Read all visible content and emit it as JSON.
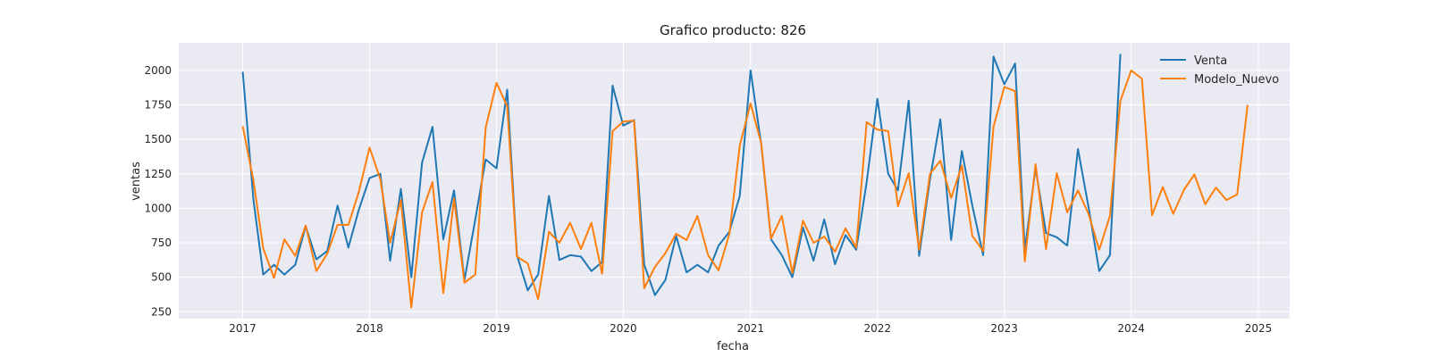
{
  "chart_data": {
    "type": "line",
    "title": "Grafico producto: 826",
    "xlabel": "fecha",
    "ylabel": "ventas",
    "xlim": [
      "2016-07-01",
      "2025-04-01"
    ],
    "ylim": [
      200,
      2200
    ],
    "yticks": [
      250,
      500,
      750,
      1000,
      1250,
      1500,
      1750,
      2000
    ],
    "xticks": [
      "2017-01-01",
      "2018-01-01",
      "2019-01-01",
      "2020-01-01",
      "2021-01-01",
      "2022-01-01",
      "2023-01-01",
      "2024-01-01",
      "2025-01-01"
    ],
    "xtick_labels": [
      "2017",
      "2018",
      "2019",
      "2020",
      "2021",
      "2022",
      "2023",
      "2024",
      "2025"
    ],
    "grid": true,
    "legend_position": "top-right",
    "series": [
      {
        "name": "Venta",
        "color": "#1f77b4",
        "start": "2017-01",
        "values": [
          1990,
          1060,
          520,
          590,
          520,
          590,
          870,
          630,
          690,
          1020,
          715,
          990,
          1220,
          1250,
          620,
          1140,
          500,
          1330,
          1590,
          775,
          1130,
          480,
          920,
          1355,
          1290,
          1860,
          660,
          405,
          520,
          1090,
          625,
          660,
          650,
          545,
          610,
          1890,
          1600,
          1640,
          590,
          370,
          480,
          800,
          535,
          590,
          535,
          730,
          830,
          1090,
          2000,
          1460,
          775,
          660,
          500,
          860,
          620,
          920,
          595,
          805,
          700,
          1190,
          1795,
          1250,
          1130,
          1780,
          655,
          1210,
          1645,
          770,
          1415,
          1020,
          660,
          2100,
          1900,
          2050,
          700,
          1290,
          820,
          790,
          730,
          1430,
          1000,
          545,
          660,
          2120
        ]
      },
      {
        "name": "Modelo_Nuevo",
        "color": "#ff7f0e",
        "start": "2017-01",
        "values": [
          1595,
          1200,
          710,
          495,
          775,
          655,
          875,
          545,
          670,
          880,
          880,
          1120,
          1440,
          1210,
          750,
          1060,
          280,
          970,
          1190,
          385,
          1070,
          460,
          520,
          1585,
          1910,
          1740,
          650,
          600,
          340,
          830,
          750,
          895,
          705,
          895,
          525,
          1560,
          1630,
          1635,
          420,
          575,
          675,
          815,
          770,
          945,
          660,
          550,
          815,
          1455,
          1760,
          1470,
          780,
          945,
          530,
          910,
          750,
          795,
          685,
          855,
          715,
          1625,
          1570,
          1560,
          1015,
          1255,
          700,
          1250,
          1345,
          1075,
          1310,
          800,
          690,
          1590,
          1880,
          1850,
          615,
          1320,
          705,
          1255,
          970,
          1130,
          955,
          700,
          945,
          1780,
          2000,
          1940,
          950,
          1155,
          960,
          1135,
          1245,
          1030,
          1150,
          1060,
          1100,
          1750
        ]
      }
    ]
  }
}
